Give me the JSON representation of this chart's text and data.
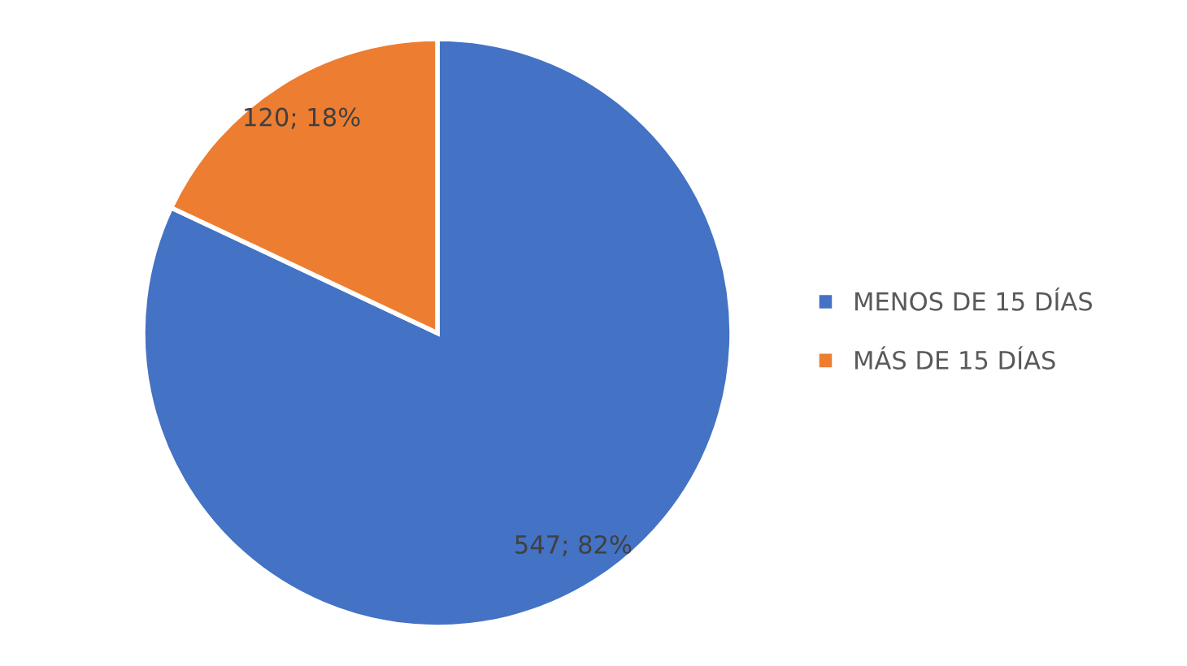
{
  "chart_data": {
    "type": "pie",
    "categories": [
      "MENOS DE 15 DÍAS",
      "MÁS DE 15 DÍAS"
    ],
    "values": [
      547,
      120
    ],
    "colors": [
      "#4472c4",
      "#ed7d31"
    ],
    "value_labels": [
      "547; 82%",
      "120; 18%"
    ],
    "legend": "right"
  }
}
